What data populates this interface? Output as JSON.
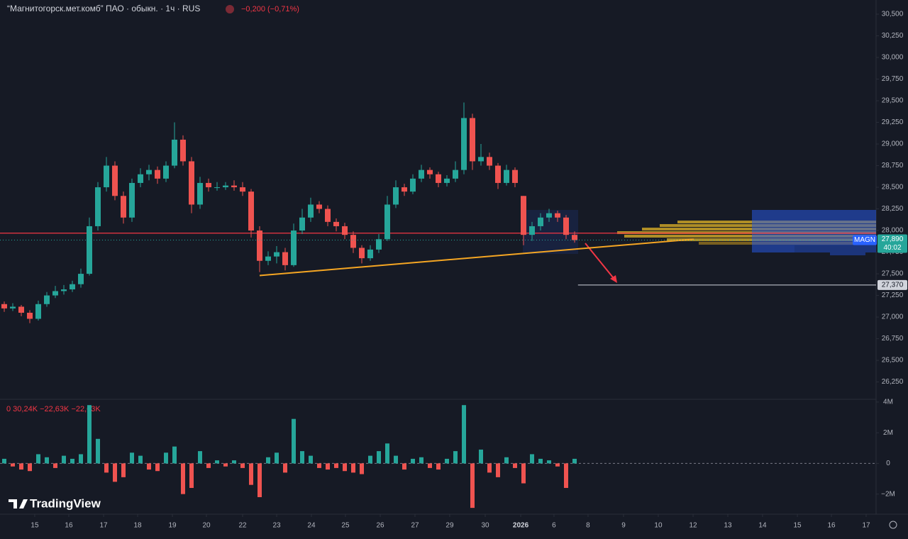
{
  "header": {
    "title": "“Магнитогорск.мет.комб” ПАО · обыкн. · 1ч · RUS",
    "change": "−0,200 (−0,71%)"
  },
  "brand": "TradingView",
  "chart_data": {
    "type": "candlestick",
    "up_color": "#26a69a",
    "down_color": "#ef5350",
    "ohlc": [
      [
        27150,
        27180,
        27060,
        27100
      ],
      [
        27100,
        27160,
        27070,
        27120
      ],
      [
        27120,
        27140,
        27010,
        27050
      ],
      [
        27050,
        27080,
        26930,
        26980
      ],
      [
        26980,
        27190,
        26960,
        27150
      ],
      [
        27150,
        27290,
        27120,
        27250
      ],
      [
        27250,
        27360,
        27220,
        27300
      ],
      [
        27300,
        27370,
        27260,
        27320
      ],
      [
        27320,
        27420,
        27290,
        27380
      ],
      [
        27380,
        27560,
        27340,
        27500
      ],
      [
        27500,
        28150,
        27480,
        28050
      ],
      [
        28050,
        28560,
        28000,
        28500
      ],
      [
        28500,
        28850,
        28450,
        28750
      ],
      [
        28750,
        28800,
        28350,
        28400
      ],
      [
        28400,
        28450,
        28080,
        28150
      ],
      [
        28150,
        28600,
        28100,
        28550
      ],
      [
        28550,
        28720,
        28500,
        28650
      ],
      [
        28650,
        28760,
        28580,
        28700
      ],
      [
        28700,
        28740,
        28540,
        28600
      ],
      [
        28600,
        28800,
        28560,
        28750
      ],
      [
        28750,
        29250,
        28720,
        29050
      ],
      [
        29050,
        29100,
        28750,
        28800
      ],
      [
        28800,
        28850,
        28200,
        28300
      ],
      [
        28300,
        28620,
        28250,
        28550
      ],
      [
        28550,
        28600,
        28450,
        28500
      ],
      [
        28500,
        28560,
        28460,
        28500
      ],
      [
        28500,
        28560,
        28470,
        28520
      ],
      [
        28520,
        28580,
        28460,
        28500
      ],
      [
        28500,
        28560,
        28400,
        28450
      ],
      [
        28450,
        28480,
        27920,
        28000
      ],
      [
        28000,
        28050,
        27520,
        27650
      ],
      [
        27650,
        27760,
        27600,
        27700
      ],
      [
        27700,
        27820,
        27620,
        27750
      ],
      [
        27750,
        27800,
        27540,
        27600
      ],
      [
        27600,
        28080,
        27580,
        28000
      ],
      [
        28000,
        28250,
        27960,
        28150
      ],
      [
        28150,
        28380,
        28100,
        28300
      ],
      [
        28300,
        28340,
        28200,
        28250
      ],
      [
        28250,
        28290,
        28050,
        28100
      ],
      [
        28100,
        28140,
        27990,
        28050
      ],
      [
        28050,
        28090,
        27900,
        27950
      ],
      [
        27950,
        27990,
        27740,
        27800
      ],
      [
        27800,
        27830,
        27620,
        27680
      ],
      [
        27680,
        27830,
        27650,
        27780
      ],
      [
        27780,
        27960,
        27740,
        27900
      ],
      [
        27900,
        28400,
        27880,
        28300
      ],
      [
        28300,
        28580,
        28260,
        28500
      ],
      [
        28500,
        28540,
        28400,
        28450
      ],
      [
        28450,
        28650,
        28420,
        28600
      ],
      [
        28600,
        28760,
        28560,
        28700
      ],
      [
        28700,
        28730,
        28600,
        28650
      ],
      [
        28650,
        28680,
        28500,
        28550
      ],
      [
        28550,
        28640,
        28510,
        28600
      ],
      [
        28600,
        28800,
        28560,
        28700
      ],
      [
        28700,
        29480,
        28650,
        29300
      ],
      [
        29300,
        29350,
        28700,
        28800
      ],
      [
        28800,
        29000,
        28750,
        28850
      ],
      [
        28850,
        28900,
        28700,
        28750
      ],
      [
        28750,
        28780,
        28480,
        28550
      ],
      [
        28550,
        28760,
        28520,
        28700
      ],
      [
        28700,
        28730,
        28500,
        28550
      ],
      [
        28400,
        28400,
        27830,
        27950
      ],
      [
        27950,
        28100,
        27880,
        28050
      ],
      [
        28050,
        28200,
        28000,
        28150
      ],
      [
        28150,
        28250,
        28100,
        28200
      ],
      [
        28200,
        28230,
        28100,
        28150
      ],
      [
        28150,
        28180,
        27900,
        27950
      ],
      [
        27950,
        27990,
        27860,
        27890
      ]
    ],
    "xlim": [
      -0.5,
      102
    ],
    "xticks": [
      {
        "value": 3.58,
        "label": "15"
      },
      {
        "value": 7.58,
        "label": "16"
      },
      {
        "value": 11.67,
        "label": "17"
      },
      {
        "value": 15.67,
        "label": "18"
      },
      {
        "value": 19.75,
        "label": "19"
      },
      {
        "value": 23.75,
        "label": "20"
      },
      {
        "value": 28,
        "label": "22"
      },
      {
        "value": 32,
        "label": "23"
      },
      {
        "value": 36.08,
        "label": "24"
      },
      {
        "value": 40.08,
        "label": "25"
      },
      {
        "value": 44.17,
        "label": "26"
      },
      {
        "value": 48.25,
        "label": "27"
      },
      {
        "value": 52.33,
        "label": "29"
      },
      {
        "value": 56.5,
        "label": "30"
      },
      {
        "value": 60.67,
        "label": "2026"
      },
      {
        "value": 64.58,
        "label": "6"
      },
      {
        "value": 68.58,
        "label": "8"
      },
      {
        "value": 72.75,
        "label": "9"
      },
      {
        "value": 76.83,
        "label": "10"
      },
      {
        "value": 80.92,
        "label": "12"
      },
      {
        "value": 85,
        "label": "13"
      },
      {
        "value": 89.08,
        "label": "14"
      },
      {
        "value": 93.17,
        "label": "15"
      },
      {
        "value": 97.17,
        "label": "16"
      },
      {
        "value": 101.25,
        "label": "17"
      }
    ],
    "ylim": [
      26050,
      30664
    ],
    "yticks": [
      {
        "value": 30500,
        "label": "30,500"
      },
      {
        "value": 30250,
        "label": "30,250"
      },
      {
        "value": 30000,
        "label": "30,000"
      },
      {
        "value": 29750,
        "label": "29,750"
      },
      {
        "value": 29500,
        "label": "29,500"
      },
      {
        "value": 29250,
        "label": "29,250"
      },
      {
        "value": 29000,
        "label": "29,000"
      },
      {
        "value": 28750,
        "label": "28,750"
      },
      {
        "value": 28500,
        "label": "28,500"
      },
      {
        "value": 28250,
        "label": "28,250"
      },
      {
        "value": 28000,
        "label": "28,000"
      },
      {
        "value": 27750,
        "label": "27,750"
      },
      {
        "value": 27500,
        "label": "27,500"
      },
      {
        "value": 27250,
        "label": "27,250"
      },
      {
        "value": 27000,
        "label": "27,000"
      },
      {
        "value": 26750,
        "label": "26,750"
      },
      {
        "value": 26500,
        "label": "26,500"
      },
      {
        "value": 26250,
        "label": "26,250"
      }
    ],
    "price_line": {
      "value": 27970,
      "color": "#f23645"
    },
    "trendline": {
      "x": [
        30,
        81
      ],
      "values": [
        27480,
        27900
      ],
      "color": "#f5a623"
    },
    "target": {
      "value": 27370,
      "label": "27,370",
      "x": 67.4
    },
    "last": {
      "symbol": "MAGN",
      "value": 27890,
      "label": "27,890",
      "countdown": "40:02"
    },
    "volume": {
      "legend": "0 30,24K −22,63K −22,63K",
      "ylim": [
        -3310000,
        4180000
      ],
      "yticks": [
        {
          "value": 4000000,
          "label": "4M"
        },
        {
          "value": 2000000,
          "label": "2M"
        },
        0,
        {
          "value": -2000000,
          "label": "−2M"
        }
      ],
      "values": [
        300000,
        -200000,
        -400000,
        -500000,
        600000,
        400000,
        -300000,
        500000,
        300000,
        600000,
        3800000,
        1600000,
        -600000,
        -1200000,
        -900000,
        700000,
        500000,
        -400000,
        -500000,
        700000,
        1100000,
        -2000000,
        -1600000,
        800000,
        -300000,
        200000,
        -200000,
        200000,
        -300000,
        -1400000,
        -2200000,
        400000,
        700000,
        -600000,
        2900000,
        800000,
        500000,
        -300000,
        -400000,
        -300000,
        -500000,
        -600000,
        -700000,
        500000,
        800000,
        1300000,
        500000,
        -400000,
        300000,
        400000,
        -300000,
        -400000,
        300000,
        800000,
        3800000,
        -2900000,
        900000,
        -600000,
        -900000,
        400000,
        -300000,
        -1300000,
        600000,
        300000,
        200000,
        -200000,
        -1600000,
        300000
      ]
    }
  }
}
